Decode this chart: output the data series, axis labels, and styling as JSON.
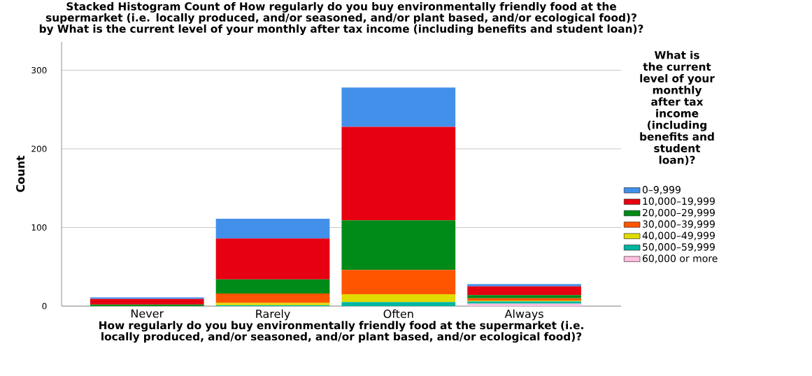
{
  "chart_data": {
    "type": "bar",
    "stacked": true,
    "title": "Stacked Histogram Count of How regularly do you buy environmentally friendly food at the supermarket (i.e. locally produced, and/or seasoned, and/or plant based, and/or ecological food)? by What is the current level of your monthly after tax income (including benefits and student loan)?",
    "xlabel": "How regularly do you buy environmentally friendly food at the supermarket (i.e. locally produced, and/or seasoned, and/or plant based, and/or ecological food)?",
    "ylabel": "Count",
    "legend_title": "What is the current level of your monthly after tax income (including benefits and student loan)?",
    "categories": [
      "Never",
      "Rarely",
      "Often",
      "Always"
    ],
    "series": [
      {
        "name": "60,000 or more",
        "color": "#ffbfe0",
        "values": [
          0,
          null,
          null,
          3
        ]
      },
      {
        "name": "50,000–59,999",
        "color": "#00b5a0",
        "values": [
          0,
          1,
          5,
          3
        ]
      },
      {
        "name": "40,000–49,999",
        "color": "#e0dc00",
        "values": [
          0,
          3,
          10,
          1
        ]
      },
      {
        "name": "30,000–39,999",
        "color": "#ff5500",
        "values": [
          0,
          12,
          31,
          3
        ]
      },
      {
        "name": "20,000–29,999",
        "color": "#008a17",
        "values": [
          2,
          18,
          63,
          4
        ]
      },
      {
        "name": "10,000–19,999",
        "color": "#e60012",
        "values": [
          7,
          52,
          119,
          11
        ]
      },
      {
        "name": "0–9,999",
        "color": "#4390ea",
        "values": [
          2,
          25,
          50,
          3
        ]
      }
    ],
    "ylim": [
      0,
      336
    ],
    "yticks": [
      0,
      100,
      200,
      300
    ],
    "grid": "y",
    "legend": "right"
  }
}
